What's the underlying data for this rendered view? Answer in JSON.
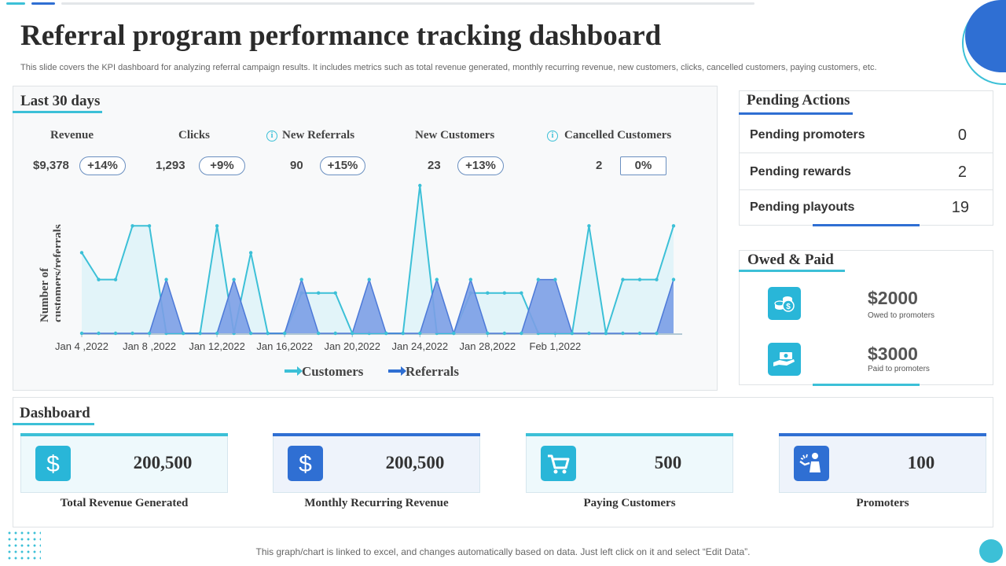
{
  "title": "Referral program performance tracking dashboard",
  "subtitle": "This slide covers the KPI dashboard for analyzing referral campaign results. It includes metrics such as total revenue generated, monthly recurring revenue, new customers, clicks, cancelled customers, paying customers, etc.",
  "colors": {
    "accent_teal": "#3cc0d7",
    "accent_blue": "#2f6fd3",
    "area_customers": "#dff3f8",
    "area_referrals": "#7b9fe6"
  },
  "last30": {
    "title": "Last 30 days",
    "kpis": [
      {
        "label": "Revenue",
        "value": "$9,378",
        "change": "+14%",
        "icon": ""
      },
      {
        "label": "Clicks",
        "value": "1,293",
        "change": "+9%",
        "icon": ""
      },
      {
        "label": "New Referrals",
        "value": "90",
        "change": "+15%",
        "icon": "info-icon"
      },
      {
        "label": "New Customers",
        "value": "23",
        "change": "+13%",
        "icon": ""
      },
      {
        "label": "Cancelled Customers",
        "value": "2",
        "change": "0%",
        "icon": "info-icon"
      }
    ]
  },
  "chart_data": {
    "type": "area",
    "ylabel": "Number of customers/referrals",
    "x_tick_labels": [
      "Jan 4 ,2022",
      "Jan 8 ,2022",
      "Jan 12,2022",
      "Jan 16,2022",
      "Jan 20,2022",
      "Jan 24,2022",
      "Jan 28,2022",
      "Feb 1,2022"
    ],
    "x": [
      "Jan 4",
      "Jan 5",
      "Jan 6",
      "Jan 7",
      "Jan 8",
      "Jan 9",
      "Jan 10",
      "Jan 11",
      "Jan 12",
      "Jan 13",
      "Jan 14",
      "Jan 15",
      "Jan 16",
      "Jan 17",
      "Jan 18",
      "Jan 19",
      "Jan 20",
      "Jan 21",
      "Jan 22",
      "Jan 23",
      "Jan 24",
      "Jan 25",
      "Jan 26",
      "Jan 27",
      "Jan 28",
      "Jan 29",
      "Jan 30",
      "Jan 31",
      "Feb 1",
      "Feb 2",
      "Feb 3",
      "Feb 4",
      "Feb 5",
      "Feb 6",
      "Feb 7",
      "Feb 8"
    ],
    "series": [
      {
        "name": "Customers",
        "values": [
          6,
          4,
          4,
          8,
          8,
          0,
          0,
          0,
          8,
          0,
          6,
          0,
          0,
          3,
          3,
          3,
          0,
          0,
          0,
          0,
          11,
          0,
          0,
          3,
          3,
          3,
          3,
          0,
          0,
          0,
          8,
          0,
          4,
          4,
          4,
          8
        ]
      },
      {
        "name": "Referrals",
        "values": [
          0,
          0,
          0,
          0,
          0,
          4,
          0,
          0,
          0,
          4,
          0,
          0,
          0,
          4,
          0,
          0,
          0,
          4,
          0,
          0,
          0,
          4,
          0,
          4,
          0,
          0,
          0,
          4,
          4,
          0,
          0,
          0,
          0,
          0,
          0,
          4
        ]
      }
    ],
    "legend": [
      "Customers",
      "Referrals"
    ],
    "legend_position": "bottom",
    "grid": false
  },
  "pending": {
    "title": "Pending Actions",
    "rows": [
      {
        "label": "Pending promoters",
        "value": "0"
      },
      {
        "label": "Pending rewards",
        "value": "2"
      },
      {
        "label": "Pending playouts",
        "value": "19"
      }
    ]
  },
  "owed_paid": {
    "title": "Owed & Paid",
    "items": [
      {
        "amount": "$2000",
        "caption": "Owed to promoters",
        "icon": "coins-icon"
      },
      {
        "amount": "$3000",
        "caption": "Paid to promoters",
        "icon": "hand-money-icon"
      }
    ]
  },
  "dashboard": {
    "title": "Dashboard",
    "cards": [
      {
        "value": "200,500",
        "label": "Total Revenue Generated",
        "icon": "dollar-icon"
      },
      {
        "value": "200,500",
        "label": "Monthly Recurring Revenue",
        "icon": "dollar-icon"
      },
      {
        "value": "500",
        "label": "Paying Customers",
        "icon": "cart-icon"
      },
      {
        "value": "100",
        "label": "Promoters",
        "icon": "promoter-icon"
      }
    ]
  },
  "footer": "This graph/chart is linked to excel,  and changes automatically based on data. Just left click on it and select “Edit Data”."
}
